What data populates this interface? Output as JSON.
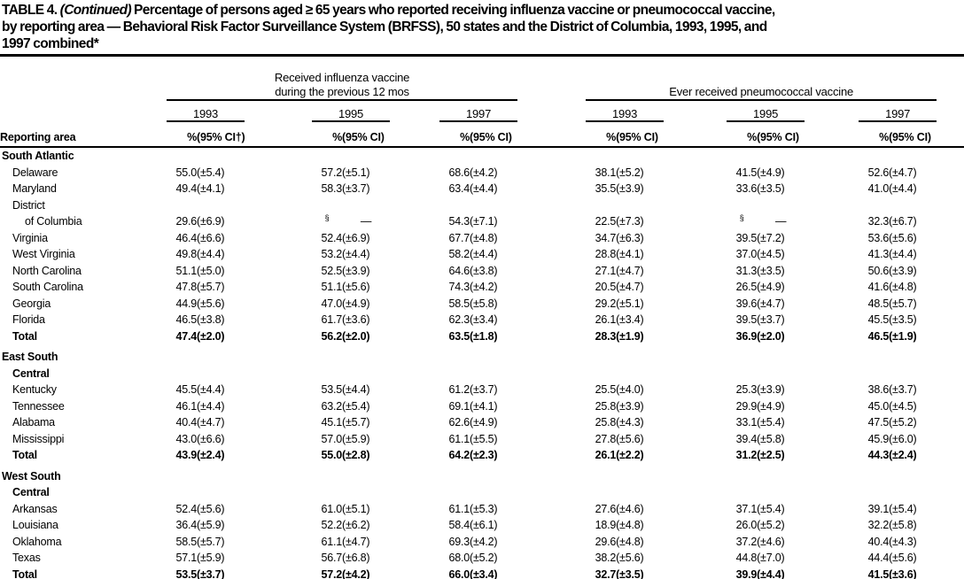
{
  "title": {
    "prefix": "TABLE 4. ",
    "continued": "(Continued)",
    "line1_rest": "Percentage of persons aged ≥ 65 years who reported receiving influenza vaccine or pneumococcal vaccine,",
    "line2": "by reporting area — Behavioral Risk Factor Surveillance System (BRFSS), 50 states and the District of Columbia, 1993, 1995, and",
    "line3": "1997 combined*"
  },
  "header": {
    "reporting_area": "Reporting area",
    "influenza_line1": "Received influenza vaccine",
    "influenza_line2": "during the previous 12 mos",
    "pneumococcal": "Ever received pneumococcal vaccine",
    "years": [
      "1993",
      "1995",
      "1997"
    ],
    "pct": "%",
    "ci": "(95% CI)",
    "ci_dagger": "(95% CI†)"
  },
  "table": {
    "rows": [
      {
        "label": "South Atlantic",
        "indent": 0,
        "section": true,
        "bold": true,
        "cells": []
      },
      {
        "label": "Delaware",
        "indent": 1,
        "bold": false,
        "cells": [
          "55.0",
          "(±5.4)",
          "57.2",
          "(±5.1)",
          "68.6",
          "(±4.2)",
          "38.1",
          "(±5.2)",
          "41.5",
          "(±4.9)",
          "52.6",
          "(±4.7)"
        ]
      },
      {
        "label": "Maryland",
        "indent": 1,
        "bold": false,
        "cells": [
          "49.4",
          "(±4.1)",
          "58.3",
          "(±3.7)",
          "63.4",
          "(±4.4)",
          "35.5",
          "(±3.9)",
          "33.6",
          "(±3.5)",
          "41.0",
          "(±4.4)"
        ]
      },
      {
        "label": "District",
        "indent": 1,
        "bold": false,
        "cells": []
      },
      {
        "label": "of Columbia",
        "indent": 2,
        "bold": false,
        "cells": [
          "29.6",
          "(±6.9)",
          "§",
          "—",
          "54.3",
          "(±7.1)",
          "22.5",
          "(±7.3)",
          "§",
          "—",
          "32.3",
          "(±6.7)"
        ]
      },
      {
        "label": "Virginia",
        "indent": 1,
        "bold": false,
        "cells": [
          "46.4",
          "(±6.6)",
          "52.4",
          "(±6.9)",
          "67.7",
          "(±4.8)",
          "34.7",
          "(±6.3)",
          "39.5",
          "(±7.2)",
          "53.6",
          "(±5.6)"
        ]
      },
      {
        "label": "West Virginia",
        "indent": 1,
        "bold": false,
        "cells": [
          "49.8",
          "(±4.4)",
          "53.2",
          "(±4.4)",
          "58.2",
          "(±4.4)",
          "28.8",
          "(±4.1)",
          "37.0",
          "(±4.5)",
          "41.3",
          "(±4.4)"
        ]
      },
      {
        "label": "North Carolina",
        "indent": 1,
        "bold": false,
        "cells": [
          "51.1",
          "(±5.0)",
          "52.5",
          "(±3.9)",
          "64.6",
          "(±3.8)",
          "27.1",
          "(±4.7)",
          "31.3",
          "(±3.5)",
          "50.6",
          "(±3.9)"
        ]
      },
      {
        "label": "South Carolina",
        "indent": 1,
        "bold": false,
        "cells": [
          "47.8",
          "(±5.7)",
          "51.1",
          "(±5.6)",
          "74.3",
          "(±4.2)",
          "20.5",
          "(±4.7)",
          "26.5",
          "(±4.9)",
          "41.6",
          "(±4.8)"
        ]
      },
      {
        "label": "Georgia",
        "indent": 1,
        "bold": false,
        "cells": [
          "44.9",
          "(±5.6)",
          "47.0",
          "(±4.9)",
          "58.5",
          "(±5.8)",
          "29.2",
          "(±5.1)",
          "39.6",
          "(±4.7)",
          "48.5",
          "(±5.7)"
        ]
      },
      {
        "label": "Florida",
        "indent": 1,
        "bold": false,
        "cells": [
          "46.5",
          "(±3.8)",
          "61.7",
          "(±3.6)",
          "62.3",
          "(±3.4)",
          "26.1",
          "(±3.4)",
          "39.5",
          "(±3.7)",
          "45.5",
          "(±3.5)"
        ]
      },
      {
        "label": "Total",
        "indent": 1,
        "bold": true,
        "cells": [
          "47.4",
          "(±2.0)",
          "56.2",
          "(±2.0)",
          "63.5",
          "(±1.8)",
          "28.3",
          "(±1.9)",
          "36.9",
          "(±2.0)",
          "46.5",
          "(±1.9)"
        ]
      },
      {
        "spacer": true
      },
      {
        "label": "East South",
        "indent": 0,
        "section": true,
        "bold": true,
        "cells": []
      },
      {
        "label": "Central",
        "indent": 1,
        "section": true,
        "bold": true,
        "cells": []
      },
      {
        "label": "Kentucky",
        "indent": 1,
        "bold": false,
        "cells": [
          "45.5",
          "(±4.4)",
          "53.5",
          "(±4.4)",
          "61.2",
          "(±3.7)",
          "25.5",
          "(±4.0)",
          "25.3",
          "(±3.9)",
          "38.6",
          "(±3.7)"
        ]
      },
      {
        "label": "Tennessee",
        "indent": 1,
        "bold": false,
        "cells": [
          "46.1",
          "(±4.4)",
          "63.2",
          "(±5.4)",
          "69.1",
          "(±4.1)",
          "25.8",
          "(±3.9)",
          "29.9",
          "(±4.9)",
          "45.0",
          "(±4.5)"
        ]
      },
      {
        "label": "Alabama",
        "indent": 1,
        "bold": false,
        "cells": [
          "40.4",
          "(±4.7)",
          "45.1",
          "(±5.7)",
          "62.6",
          "(±4.9)",
          "25.8",
          "(±4.3)",
          "33.1",
          "(±5.4)",
          "47.5",
          "(±5.2)"
        ]
      },
      {
        "label": "Mississippi",
        "indent": 1,
        "bold": false,
        "cells": [
          "43.0",
          "(±6.6)",
          "57.0",
          "(±5.9)",
          "61.1",
          "(±5.5)",
          "27.8",
          "(±5.6)",
          "39.4",
          "(±5.8)",
          "45.9",
          "(±6.0)"
        ]
      },
      {
        "label": "Total",
        "indent": 1,
        "bold": true,
        "cells": [
          "43.9",
          "(±2.4)",
          "55.0",
          "(±2.8)",
          "64.2",
          "(±2.3)",
          "26.1",
          "(±2.2)",
          "31.2",
          "(±2.5)",
          "44.3",
          "(±2.4)"
        ]
      },
      {
        "spacer": true
      },
      {
        "label": "West South",
        "indent": 0,
        "section": true,
        "bold": true,
        "cells": []
      },
      {
        "label": "Central",
        "indent": 1,
        "section": true,
        "bold": true,
        "cells": []
      },
      {
        "label": "Arkansas",
        "indent": 1,
        "bold": false,
        "cells": [
          "52.4",
          "(±5.6)",
          "61.0",
          "(±5.1)",
          "61.1",
          "(±5.3)",
          "27.6",
          "(±4.6)",
          "37.1",
          "(±5.4)",
          "39.1",
          "(±5.4)"
        ]
      },
      {
        "label": "Louisiana",
        "indent": 1,
        "bold": false,
        "cells": [
          "36.4",
          "(±5.9)",
          "52.2",
          "(±6.2)",
          "58.4",
          "(±6.1)",
          "18.9",
          "(±4.8)",
          "26.0",
          "(±5.2)",
          "32.2",
          "(±5.8)"
        ]
      },
      {
        "label": "Oklahoma",
        "indent": 1,
        "bold": false,
        "cells": [
          "58.5",
          "(±5.7)",
          "61.1",
          "(±4.7)",
          "69.3",
          "(±4.2)",
          "29.6",
          "(±4.8)",
          "37.2",
          "(±4.6)",
          "40.4",
          "(±4.3)"
        ]
      },
      {
        "label": "Texas",
        "indent": 1,
        "bold": false,
        "cells": [
          "57.1",
          "(±5.9)",
          "56.7",
          "(±6.8)",
          "68.0",
          "(±5.2)",
          "38.2",
          "(±5.6)",
          "44.8",
          "(±7.0)",
          "44.4",
          "(±5.6)"
        ]
      },
      {
        "label": "Total",
        "indent": 1,
        "bold": true,
        "cells": [
          "53.5",
          "(±3.7)",
          "57.2",
          "(±4.2)",
          "66.0",
          "(±3.4)",
          "32.7",
          "(±3.5)",
          "39.9",
          "(±4.4)",
          "41.5",
          "(±3.6)"
        ]
      }
    ]
  }
}
